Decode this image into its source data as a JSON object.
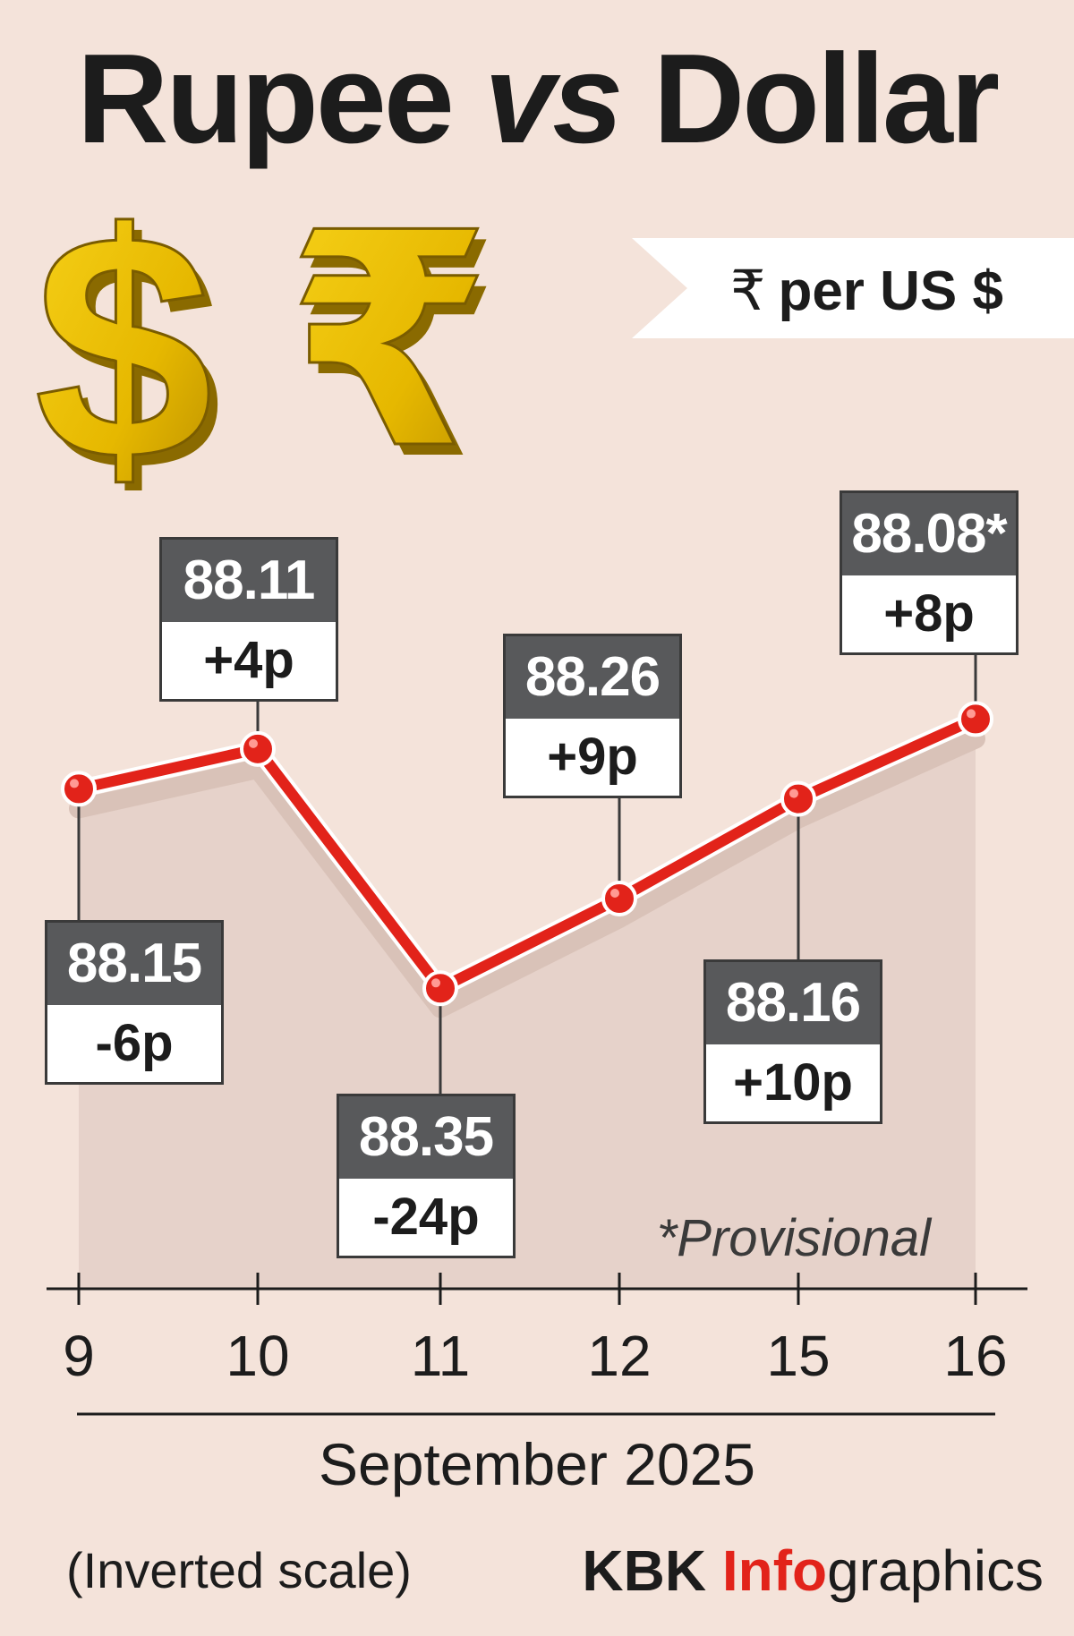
{
  "header": {
    "title_part1": "Rupee ",
    "title_vs": "vs",
    "title_part2": " Dollar",
    "unit_symbol": "₹",
    "unit_text": "per US $"
  },
  "chart_data": {
    "type": "line",
    "title": "Rupee vs Dollar",
    "ylabel": "₹ per US $",
    "xlabel": "September 2025",
    "categories": [
      "9",
      "10",
      "11",
      "12",
      "15",
      "16"
    ],
    "series": [
      {
        "values": [
          88.15,
          88.11,
          88.35,
          88.26,
          88.16,
          88.08
        ],
        "value_labels": [
          "88.15",
          "88.11",
          "88.35",
          "88.26",
          "88.16",
          "88.08*"
        ],
        "change_labels": [
          "-6p",
          "+4p",
          "-24p",
          "+9p",
          "+10p",
          "+8p"
        ]
      }
    ],
    "y_inverted": true,
    "ylim": [
      88.4,
      88.05
    ],
    "grid": false,
    "legend": "none",
    "annotation": "*Provisional",
    "colors": {
      "line": "#e2231a",
      "label_box": "#58595b",
      "area": "#e6d2ca",
      "background": "#f4e3da"
    }
  },
  "footer": {
    "note": "(Inverted scale)",
    "credit_bold": "KBK ",
    "credit_accent": "Info",
    "credit_rest": "graphics"
  },
  "icons": [
    "dollar-sign-icon",
    "rupee-sign-icon"
  ]
}
